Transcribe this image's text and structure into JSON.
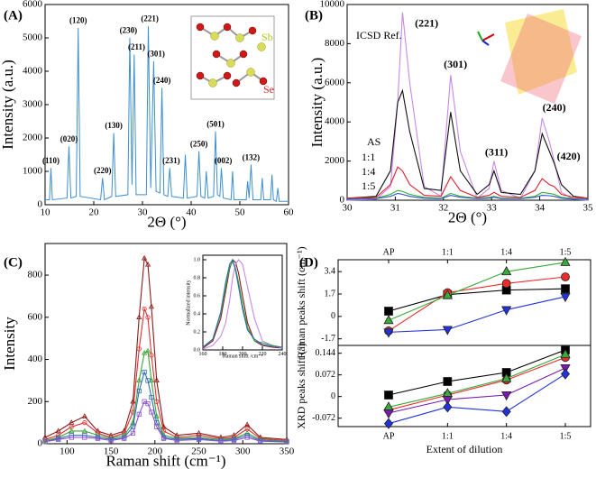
{
  "chart_data": [
    {
      "type": "line",
      "panel": "(A)",
      "xlabel": "2Θ (°)",
      "ylabel": "Intensity (a.u.)",
      "xlim": [
        10,
        60
      ],
      "xticks": [
        10,
        20,
        30,
        40,
        50,
        60
      ],
      "ylim": [
        0,
        6000
      ],
      "yticks": [
        0,
        1000,
        2000,
        3000,
        4000,
        5000,
        6000
      ],
      "x": [
        10,
        10.9,
        11.2,
        11.5,
        14.5,
        14.9,
        15.3,
        16.4,
        16.8,
        17.2,
        21.4,
        21.8,
        22.2,
        23.7,
        24.1,
        24.5,
        27.0,
        27.4,
        27.85,
        28.3,
        28.7,
        30.8,
        31.2,
        31.7,
        32.3,
        32.8,
        33.6,
        34.0,
        34.4,
        35.2,
        35.6,
        36.0,
        38.4,
        38.8,
        39.2,
        41.2,
        41.6,
        42.0,
        42.8,
        43.1,
        43.5,
        44.6,
        45.0,
        45.4,
        45.9,
        46.2,
        46.6,
        48.2,
        48.5,
        48.8,
        51.3,
        51.6,
        51.9,
        52.3,
        52.7,
        54.3,
        54.6,
        54.9,
        56.3,
        56.6,
        56.9,
        57.5,
        57.8,
        58.1,
        60
      ],
      "series": [
        {
          "color": "#3d8fd1",
          "values": [
            150,
            150,
            1100,
            150,
            200,
            1750,
            200,
            250,
            5300,
            250,
            150,
            800,
            150,
            250,
            2150,
            250,
            300,
            5000,
            600,
            4500,
            300,
            300,
            5350,
            500,
            4300,
            400,
            350,
            3500,
            300,
            250,
            1100,
            250,
            200,
            1500,
            200,
            250,
            1600,
            250,
            200,
            1000,
            200,
            250,
            2200,
            300,
            250,
            1100,
            200,
            150,
            1000,
            150,
            150,
            700,
            200,
            1200,
            150,
            150,
            800,
            150,
            150,
            900,
            150,
            100,
            500,
            100,
            100
          ]
        }
      ],
      "annotations": [
        {
          "text": "(110)",
          "x": 11.2,
          "y": 1300
        },
        {
          "text": "(020)",
          "x": 14.9,
          "y": 1950
        },
        {
          "text": "(120)",
          "x": 16.8,
          "y": 5500
        },
        {
          "text": "(220)",
          "x": 21.8,
          "y": 1000
        },
        {
          "text": "(130)",
          "x": 24.1,
          "y": 2350
        },
        {
          "text": "(230)",
          "x": 27.1,
          "y": 5200
        },
        {
          "text": "(211)",
          "x": 28.8,
          "y": 4700
        },
        {
          "text": "(221)",
          "x": 31.5,
          "y": 5550
        },
        {
          "text": "(301)",
          "x": 32.8,
          "y": 4500
        },
        {
          "text": "(240)",
          "x": 34.0,
          "y": 3700
        },
        {
          "text": "(231)",
          "x": 35.9,
          "y": 1300
        },
        {
          "text": "(250)",
          "x": 41.6,
          "y": 1800
        },
        {
          "text": "(501)",
          "x": 45.0,
          "y": 2400
        },
        {
          "text": "(002)",
          "x": 46.6,
          "y": 1300
        },
        {
          "text": "(132)",
          "x": 52.3,
          "y": 1400
        }
      ],
      "inset_labels": [
        {
          "text": "Sb",
          "color": "#b5c41a"
        },
        {
          "text": "Se",
          "color": "#e02020"
        }
      ]
    },
    {
      "type": "line",
      "panel": "(B)",
      "xlabel": "2Θ (°)",
      "ylabel": "Intensity (a.u.)",
      "xlim": [
        30,
        35
      ],
      "xticks": [
        30,
        31,
        32,
        33,
        34,
        35
      ],
      "ylim": [
        0,
        10000
      ],
      "yticks": [
        0,
        2000,
        4000,
        6000,
        8000,
        10000
      ],
      "x": [
        30,
        30.6,
        30.9,
        31.05,
        31.15,
        31.3,
        31.6,
        31.95,
        32.15,
        32.35,
        32.7,
        32.95,
        33.05,
        33.2,
        33.6,
        33.9,
        34.05,
        34.2,
        34.3,
        34.45,
        34.7,
        35
      ],
      "series": [
        {
          "name": "ICSD Ref.",
          "color": "#c58ae6",
          "values": [
            0,
            50,
            700,
            5000,
            9600,
            6000,
            700,
            200,
            6400,
            2500,
            100,
            600,
            2000,
            500,
            100,
            1500,
            4200,
            3000,
            2000,
            400,
            50,
            0
          ]
        },
        {
          "name": "AS",
          "color": "#111111",
          "values": [
            100,
            200,
            1500,
            5000,
            5600,
            3500,
            600,
            500,
            4500,
            1500,
            300,
            800,
            1500,
            400,
            300,
            1500,
            3400,
            2500,
            1900,
            800,
            200,
            100
          ]
        },
        {
          "name": "1:1",
          "color": "#e0202a",
          "values": [
            100,
            150,
            800,
            1700,
            1500,
            800,
            250,
            200,
            1200,
            500,
            150,
            250,
            400,
            200,
            150,
            500,
            1100,
            800,
            700,
            300,
            150,
            100
          ]
        },
        {
          "name": "1:4",
          "color": "#2db02d",
          "values": [
            50,
            100,
            300,
            500,
            450,
            300,
            150,
            100,
            350,
            200,
            100,
            150,
            200,
            100,
            100,
            200,
            400,
            350,
            300,
            150,
            80,
            50
          ]
        },
        {
          "name": "1:5",
          "color": "#3050d0",
          "values": [
            50,
            80,
            200,
            350,
            300,
            200,
            100,
            80,
            250,
            150,
            80,
            100,
            150,
            80,
            80,
            150,
            250,
            230,
            200,
            100,
            60,
            50
          ]
        }
      ],
      "annotations": [
        {
          "text": "(221)",
          "x": 31.65,
          "y": 9000
        },
        {
          "text": "(301)",
          "x": 32.25,
          "y": 6900
        },
        {
          "text": "(311)",
          "x": 33.1,
          "y": 2400
        },
        {
          "text": "(240)",
          "x": 34.3,
          "y": 4700
        },
        {
          "text": "(420)",
          "x": 34.6,
          "y": 2200
        }
      ]
    },
    {
      "type": "line",
      "panel": "(C)",
      "xlabel": "Raman shift (cm⁻¹)",
      "ylabel": "Intensity",
      "xlim": [
        75,
        350
      ],
      "xticks": [
        100,
        150,
        200,
        250,
        300,
        350
      ],
      "ylim": [
        0,
        950
      ],
      "yticks": [
        0,
        200,
        400,
        600,
        800
      ],
      "markers_open": true,
      "x": [
        75,
        90,
        105,
        120,
        135,
        150,
        165,
        175,
        182,
        188,
        192,
        196,
        202,
        210,
        225,
        250,
        275,
        290,
        305,
        320,
        350
      ],
      "series": [
        {
          "color": "#8b1a1a",
          "marker": "triangle-up",
          "values": [
            30,
            60,
            100,
            130,
            60,
            40,
            60,
            200,
            600,
            880,
            850,
            650,
            300,
            80,
            40,
            50,
            30,
            40,
            90,
            30,
            20
          ]
        },
        {
          "color": "#e03030",
          "marker": "circle",
          "values": [
            20,
            40,
            80,
            100,
            50,
            30,
            50,
            150,
            450,
            640,
            600,
            420,
            200,
            60,
            30,
            40,
            25,
            30,
            70,
            25,
            15
          ]
        },
        {
          "color": "#3aa63a",
          "marker": "triangle-up",
          "values": [
            15,
            30,
            60,
            60,
            40,
            25,
            40,
            100,
            300,
            430,
            440,
            300,
            130,
            40,
            25,
            30,
            20,
            25,
            50,
            20,
            12
          ]
        },
        {
          "color": "#2f6fb0",
          "marker": "square",
          "values": [
            10,
            25,
            40,
            40,
            30,
            20,
            30,
            80,
            250,
            340,
            300,
            220,
            100,
            30,
            20,
            25,
            15,
            20,
            40,
            15,
            10
          ]
        },
        {
          "color": "#8a4fd0",
          "marker": "square",
          "values": [
            10,
            20,
            30,
            30,
            25,
            15,
            25,
            50,
            140,
            200,
            190,
            150,
            80,
            25,
            15,
            20,
            12,
            15,
            30,
            12,
            8
          ]
        }
      ]
    },
    {
      "type": "line",
      "xlabel": "Raman shift /cm⁻¹",
      "ylabel": "Normalized intensity",
      "xlim": [
        160,
        240
      ],
      "xticks": [
        160,
        180,
        200,
        220,
        240
      ],
      "ylim": [
        0,
        1.05
      ],
      "yticks": [
        {
          "value": 0,
          "label": "0.0"
        },
        0.2,
        0.4,
        0.6,
        0.8,
        {
          "value": 1,
          "label": "1.0"
        }
      ],
      "x": [
        160,
        170,
        178,
        183,
        187,
        190,
        193,
        196,
        200,
        205,
        212,
        220,
        230,
        240
      ],
      "series": [
        {
          "color": "#8b1a1a",
          "values": [
            0.02,
            0.1,
            0.35,
            0.65,
            0.9,
            1.0,
            0.97,
            0.85,
            0.6,
            0.3,
            0.1,
            0.05,
            0.03,
            0.02
          ]
        },
        {
          "color": "#c58ae6",
          "values": [
            0.01,
            0.05,
            0.15,
            0.3,
            0.55,
            0.8,
            0.95,
            1.0,
            0.95,
            0.7,
            0.35,
            0.1,
            0.05,
            0.02
          ]
        },
        {
          "color": "#3aa63a",
          "values": [
            0.03,
            0.12,
            0.4,
            0.7,
            0.92,
            0.98,
            0.9,
            0.75,
            0.5,
            0.25,
            0.1,
            0.08,
            0.05,
            0.03
          ]
        },
        {
          "color": "#2f6fb0",
          "values": [
            0.03,
            0.12,
            0.42,
            0.75,
            0.95,
            1.0,
            0.88,
            0.7,
            0.45,
            0.22,
            0.12,
            0.06,
            0.04,
            0.03
          ]
        }
      ]
    },
    {
      "type": "line",
      "panel": "(D)",
      "ylabel": "Raman peaks shift (cm⁻¹)",
      "xtick_side": "top",
      "categories": [
        "AP",
        "1:1",
        "1:4",
        "1:5"
      ],
      "ylim": [
        -2.2,
        4.3
      ],
      "yticks": [
        -1.7,
        0,
        1.7,
        3.4
      ],
      "series": [
        {
          "color": "#000000",
          "marker": "square",
          "values": [
            0.4,
            1.65,
            2.0,
            2.1
          ]
        },
        {
          "color": "#ee2a2a",
          "marker": "circle",
          "values": [
            -1.1,
            1.8,
            2.5,
            3.0
          ]
        },
        {
          "color": "#3aaa3a",
          "marker": "triangle-up",
          "values": [
            -0.3,
            1.6,
            3.4,
            4.1
          ]
        },
        {
          "color": "#2233dd",
          "marker": "triangle-down",
          "values": [
            -1.2,
            -1.0,
            0.5,
            1.5
          ]
        }
      ]
    },
    {
      "type": "line",
      "ylabel": "XRD peaks shift (°)",
      "xlabel": "Extent of dilution",
      "xtick_side": "bottom",
      "categories": [
        "AP",
        "1:1",
        "1:4",
        "1:5"
      ],
      "ylim": [
        -0.1,
        0.17
      ],
      "yticks": [
        -0.072,
        0,
        0.072,
        0.144
      ],
      "series": [
        {
          "color": "#000000",
          "marker": "square",
          "values": [
            0.005,
            0.05,
            0.08,
            0.155
          ]
        },
        {
          "color": "#ee2a2a",
          "marker": "circle",
          "values": [
            -0.045,
            0.005,
            0.055,
            0.13
          ]
        },
        {
          "color": "#3aaa3a",
          "marker": "triangle-up",
          "values": [
            -0.035,
            0.01,
            0.06,
            0.14
          ]
        },
        {
          "color": "#7a1ab0",
          "marker": "triangle-down",
          "values": [
            -0.055,
            -0.01,
            0.005,
            0.095
          ]
        },
        {
          "color": "#2233dd",
          "marker": "diamond",
          "values": [
            -0.09,
            -0.035,
            -0.05,
            0.075
          ]
        }
      ]
    }
  ]
}
